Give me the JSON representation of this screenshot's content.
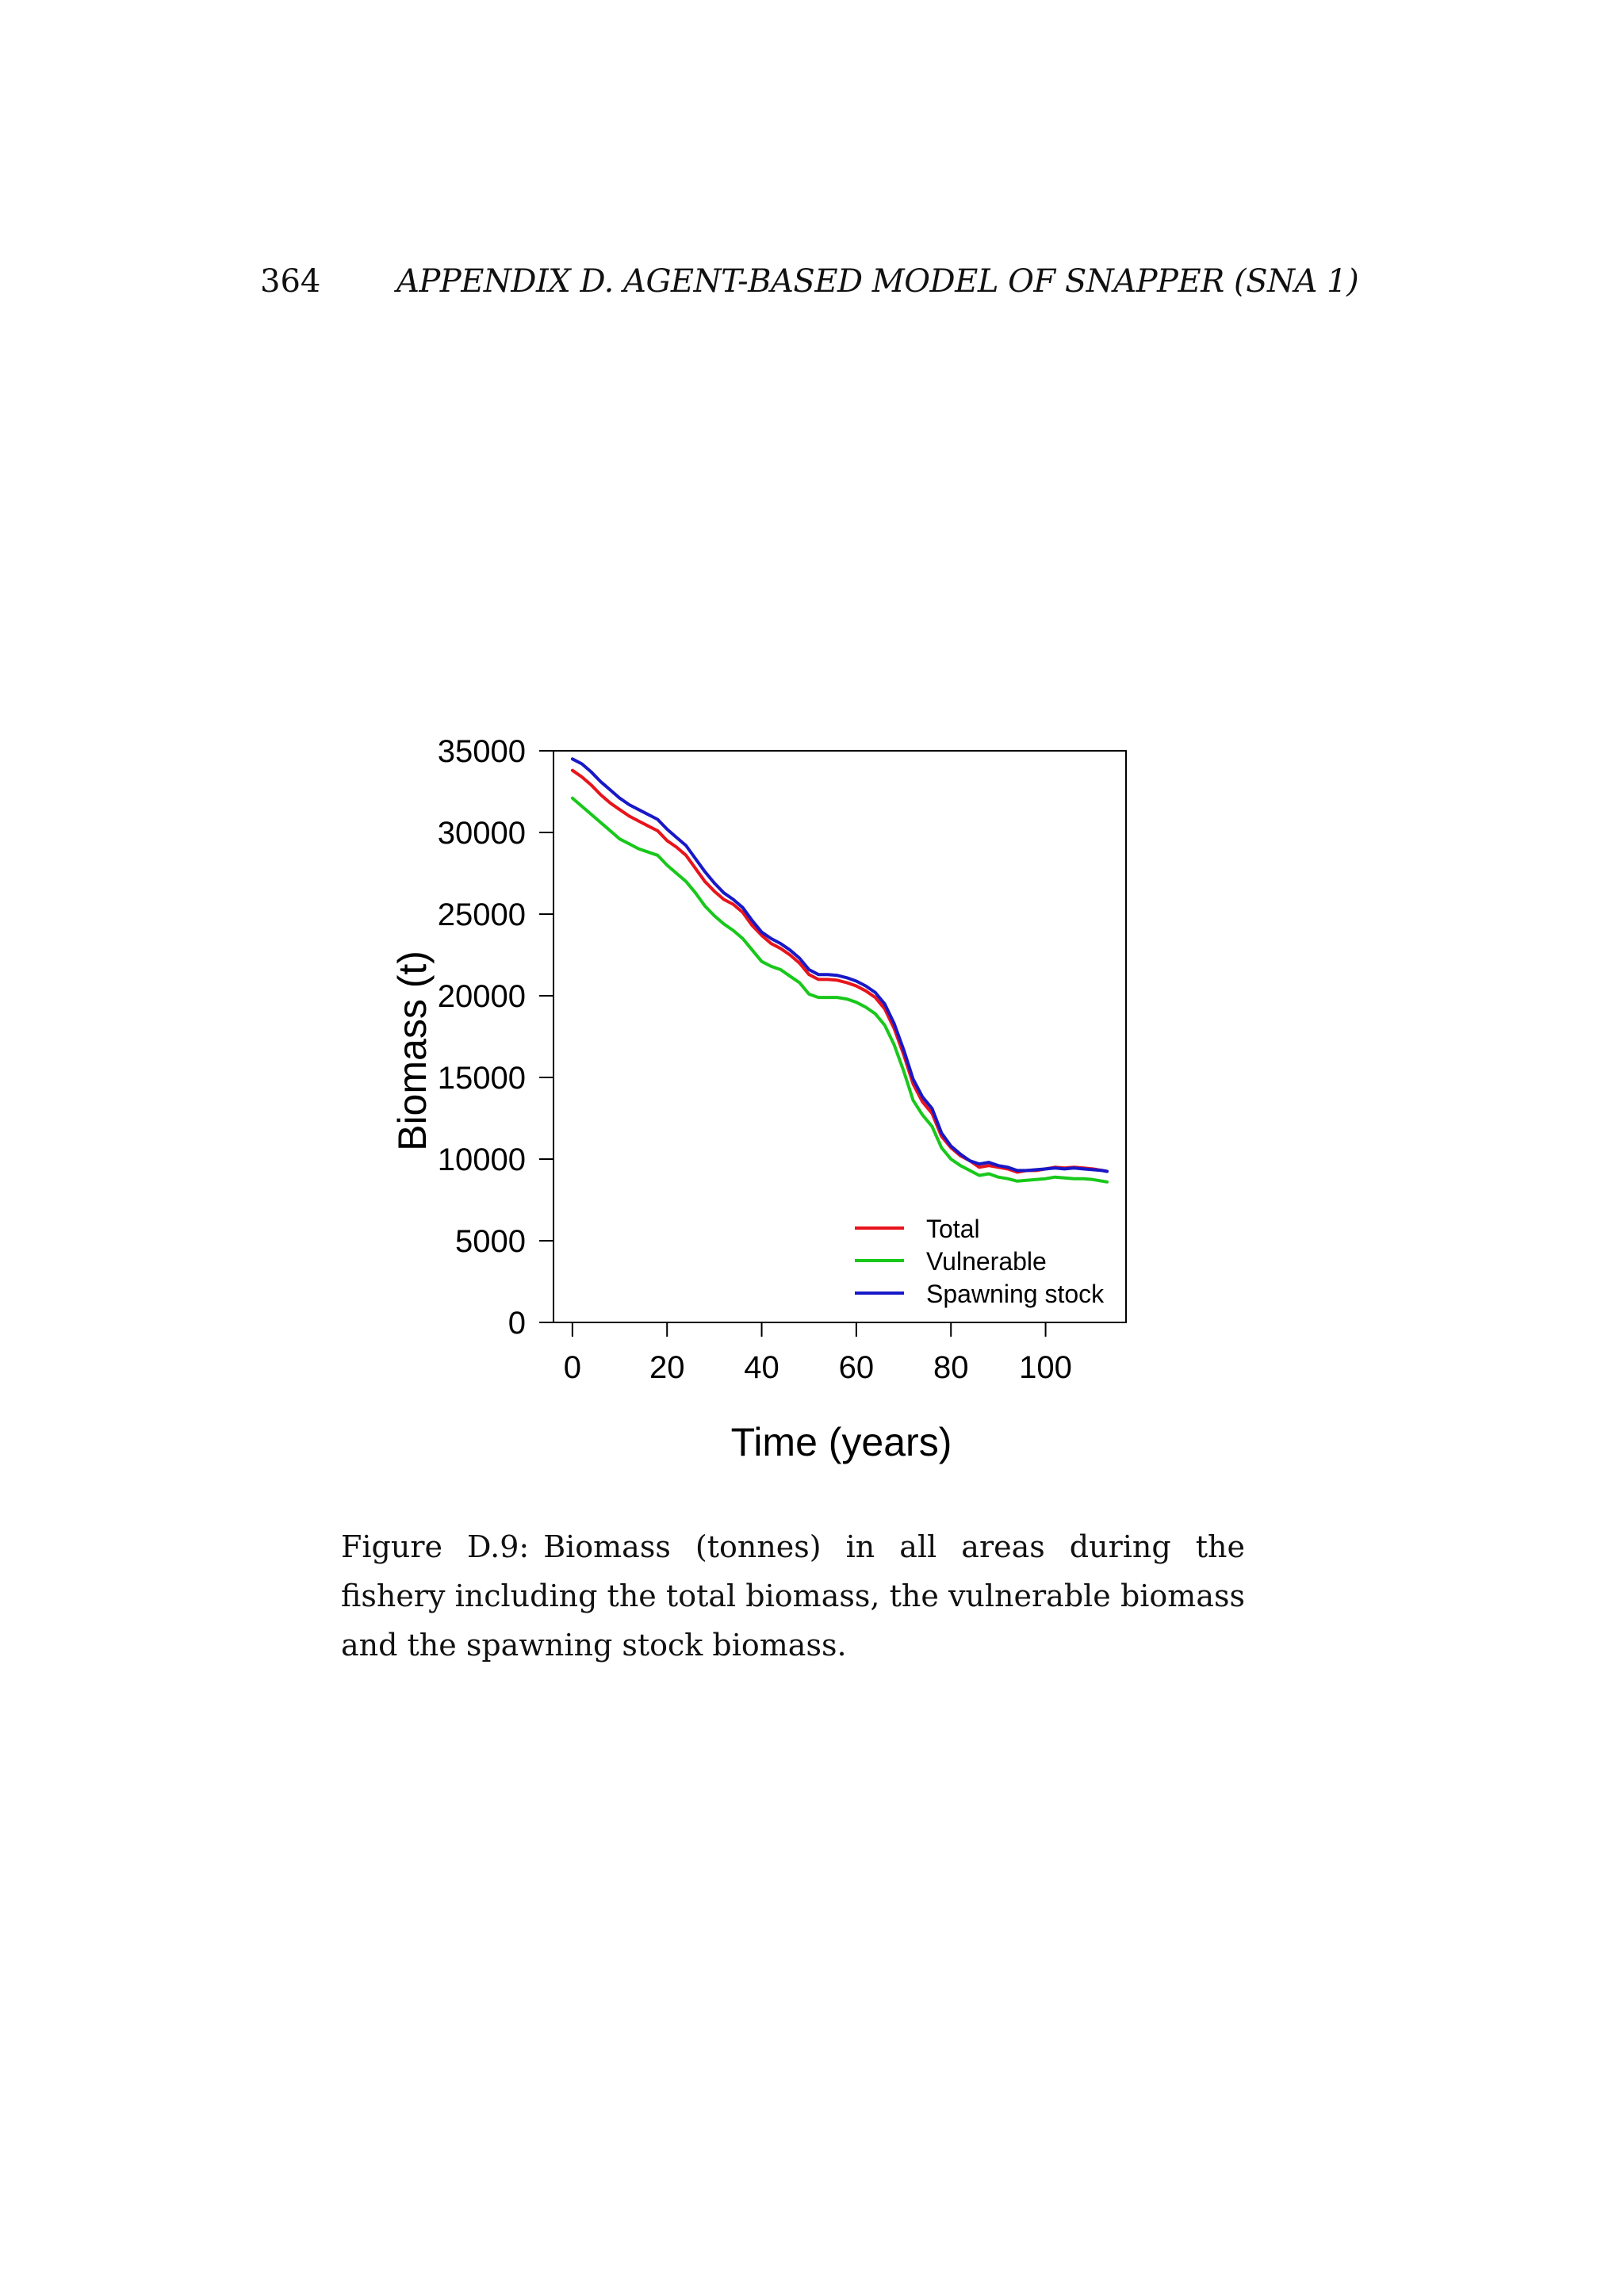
{
  "header": {
    "page_number": "364",
    "running_title": "APPENDIX D.  AGENT-BASED MODEL OF SNAPPER (SNA 1)"
  },
  "figure": {
    "caption_label": "Figure D.9:",
    "caption_text": "Biomass (tonnes) in all areas during the fishery including the total biomass, the vulnerable biomass and the spawning stock biomass."
  },
  "chart_data": {
    "type": "line",
    "title": "",
    "xlabel": "Time (years)",
    "ylabel": "Biomass (t)",
    "xlim": [
      -4,
      117
    ],
    "ylim": [
      0,
      35000
    ],
    "x_ticks": [
      0,
      20,
      40,
      60,
      80,
      100
    ],
    "y_ticks": [
      0,
      5000,
      10000,
      15000,
      20000,
      25000,
      30000,
      35000
    ],
    "grid": false,
    "legend_position": "bottom-right",
    "x": [
      0,
      2,
      4,
      6,
      8,
      10,
      12,
      14,
      16,
      18,
      20,
      22,
      24,
      26,
      28,
      30,
      32,
      34,
      36,
      38,
      40,
      42,
      44,
      46,
      48,
      50,
      52,
      54,
      56,
      58,
      60,
      62,
      64,
      66,
      68,
      70,
      72,
      74,
      76,
      78,
      80,
      82,
      84,
      86,
      88,
      90,
      92,
      94,
      96,
      98,
      100,
      102,
      104,
      106,
      108,
      110,
      112,
      113
    ],
    "series": [
      {
        "name": "Total",
        "color": "#e8141c",
        "values": [
          33800,
          33400,
          32900,
          32300,
          31800,
          31400,
          31000,
          30700,
          30400,
          30100,
          29500,
          29100,
          28600,
          27800,
          27000,
          26400,
          25900,
          25600,
          25100,
          24300,
          23700,
          23200,
          22900,
          22500,
          22000,
          21300,
          21000,
          21000,
          20950,
          20800,
          20600,
          20300,
          19900,
          19200,
          18000,
          16400,
          14600,
          13500,
          12800,
          11400,
          10700,
          10200,
          9900,
          9500,
          9600,
          9500,
          9400,
          9200,
          9300,
          9300,
          9400,
          9500,
          9450,
          9500,
          9450,
          9400,
          9300,
          9250
        ]
      },
      {
        "name": "Vulnerable",
        "color": "#18c81a",
        "values": [
          32100,
          31600,
          31100,
          30600,
          30100,
          29600,
          29300,
          29000,
          28800,
          28600,
          28000,
          27500,
          27000,
          26300,
          25500,
          24900,
          24400,
          24000,
          23500,
          22800,
          22100,
          21800,
          21600,
          21200,
          20800,
          20100,
          19900,
          19900,
          19900,
          19800,
          19600,
          19300,
          18900,
          18200,
          17000,
          15400,
          13600,
          12700,
          12000,
          10700,
          10000,
          9600,
          9300,
          9000,
          9100,
          8900,
          8800,
          8650,
          8700,
          8750,
          8800,
          8900,
          8850,
          8800,
          8800,
          8750,
          8650,
          8600
        ]
      },
      {
        "name": "Spawning stock",
        "color": "#1818c8",
        "values": [
          34500,
          34200,
          33700,
          33100,
          32600,
          32100,
          31700,
          31400,
          31100,
          30800,
          30200,
          29700,
          29200,
          28400,
          27600,
          26900,
          26300,
          25900,
          25400,
          24600,
          23900,
          23500,
          23200,
          22800,
          22300,
          21600,
          21300,
          21300,
          21250,
          21100,
          20900,
          20600,
          20200,
          19500,
          18300,
          16700,
          14900,
          13800,
          13100,
          11600,
          10800,
          10300,
          9900,
          9700,
          9800,
          9600,
          9500,
          9300,
          9300,
          9350,
          9400,
          9450,
          9400,
          9450,
          9400,
          9350,
          9300,
          9250
        ]
      }
    ]
  }
}
